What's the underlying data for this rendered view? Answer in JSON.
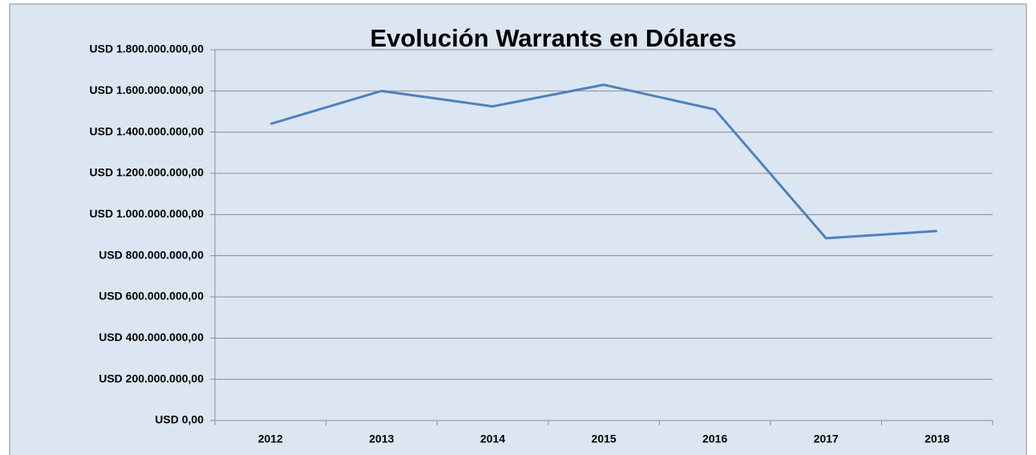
{
  "chart_data": {
    "type": "line",
    "title": "Evolución Warrants en Dólares",
    "categories": [
      "2012",
      "2013",
      "2014",
      "2015",
      "2016",
      "2017",
      "2018"
    ],
    "series": [
      {
        "name": "Warrants",
        "color": "#4f81bd",
        "values": [
          1440000000,
          1600000000,
          1525000000,
          1630000000,
          1510000000,
          885000000,
          920000000
        ]
      }
    ],
    "ylim": [
      0,
      1800000000
    ],
    "yticks": [
      {
        "value": 0,
        "label": "USD 0,00"
      },
      {
        "value": 200000000,
        "label": "USD 200.000.000,00"
      },
      {
        "value": 400000000,
        "label": "USD 400.000.000,00"
      },
      {
        "value": 600000000,
        "label": "USD 600.000.000,00"
      },
      {
        "value": 800000000,
        "label": "USD 800.000.000,00"
      },
      {
        "value": 1000000000,
        "label": "USD 1.000.000.000,00"
      },
      {
        "value": 1200000000,
        "label": "USD 1.200.000.000,00"
      },
      {
        "value": 1400000000,
        "label": "USD 1.400.000.000,00"
      },
      {
        "value": 1600000000,
        "label": "USD 1.600.000.000,00"
      },
      {
        "value": 1800000000,
        "label": "USD 1.800.000.000,00"
      }
    ],
    "grid": true
  }
}
